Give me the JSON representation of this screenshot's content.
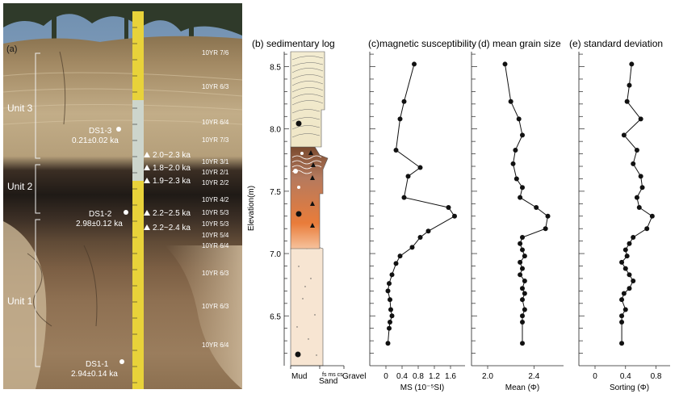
{
  "photo": {
    "panel_label": "(a)",
    "units": [
      "Unit 3",
      "Unit 2",
      "Unit 1"
    ],
    "munsell": [
      "10YR 7/6",
      "10YR 6/3",
      "10YR 6/4",
      "10YR 7/3",
      "10YR 3/1",
      "10YR 2/1",
      "10YR 2/2",
      "10YR 4/2",
      "10YR 5/3",
      "10YR 5/3",
      "10YR 5/4",
      "10YR 6/4",
      "10YR 6/3",
      "10YR 6/3",
      "10YR 6/4"
    ],
    "samples": [
      {
        "id": "DS1-3",
        "age": "0.21±0.02 ka"
      },
      {
        "id": "DS1-2",
        "age": "2.98±0.12 ka"
      },
      {
        "id": "DS1-1",
        "age": "2.94±0.14 ka"
      }
    ],
    "c14": [
      "2.0~2.3 ka",
      "1.8~2.0 ka",
      "1.9~2.3 ka",
      "2.2~2.5 ka",
      "2.2~2.4 ka"
    ]
  },
  "panels": {
    "b": {
      "title": "(b) sedimentary log",
      "xlabels": [
        "Mud",
        "Sand",
        "Gravel"
      ],
      "subxlabel": "fs ms cs"
    },
    "c": {
      "title": "(c)magnetic susceptibility"
    },
    "d": {
      "title": "(d) mean grain size"
    },
    "e": {
      "title": "(e) standard deviation"
    }
  },
  "chart_data": [
    {
      "type": "line",
      "title": "(c)magnetic susceptibility",
      "xlabel": "MS (10⁻⁵SI)",
      "ylabel": "Elevation(m)",
      "xticks": [
        "0",
        "0.4",
        "0.8",
        "1.2",
        "1.6"
      ],
      "xlim": [
        0,
        1.8
      ],
      "ylim": [
        6.1,
        8.62
      ],
      "yticks": [
        "6.5",
        "7.0",
        "7.5",
        "8.0",
        "8.5"
      ],
      "x": [
        0.7,
        0.45,
        0.35,
        0.25,
        0.85,
        0.55,
        0.45,
        1.55,
        1.7,
        1.05,
        0.85,
        0.65,
        0.35,
        0.25,
        0.15,
        0.08,
        0.05,
        0.1,
        0.12,
        0.15,
        0.1,
        0.08,
        0.05
      ],
      "y": [
        8.52,
        8.22,
        8.08,
        7.83,
        7.69,
        7.62,
        7.45,
        7.37,
        7.3,
        7.18,
        7.13,
        7.05,
        6.98,
        6.92,
        6.83,
        6.76,
        6.7,
        6.63,
        6.55,
        6.5,
        6.45,
        6.4,
        6.28
      ]
    },
    {
      "type": "line",
      "title": "(d) mean grain size",
      "xlabel": "Mean (Φ)",
      "xticks": [
        "2.0",
        "2.4"
      ],
      "xlim": [
        2.0,
        2.6
      ],
      "ylim": [
        6.1,
        8.62
      ],
      "x": [
        2.15,
        2.2,
        2.27,
        2.3,
        2.24,
        2.22,
        2.25,
        2.3,
        2.28,
        2.42,
        2.52,
        2.5,
        2.3,
        2.28,
        2.3,
        2.32,
        2.28,
        2.3,
        2.28,
        2.32,
        2.3,
        2.32,
        2.3,
        2.32,
        2.3,
        2.3,
        2.3
      ],
      "y": [
        8.52,
        8.22,
        8.08,
        7.95,
        7.83,
        7.72,
        7.6,
        7.53,
        7.45,
        7.37,
        7.3,
        7.2,
        7.13,
        7.08,
        7.03,
        6.98,
        6.93,
        6.88,
        6.83,
        6.78,
        6.72,
        6.68,
        6.63,
        6.55,
        6.5,
        6.45,
        6.28
      ]
    },
    {
      "type": "line",
      "title": "(e) standard deviation",
      "xlabel": "Sorting (Φ)",
      "xticks": [
        "0",
        "0.4",
        "0.8"
      ],
      "xlim": [
        0,
        0.9
      ],
      "ylim": [
        6.1,
        8.62
      ],
      "x": [
        0.48,
        0.45,
        0.42,
        0.6,
        0.38,
        0.55,
        0.5,
        0.6,
        0.62,
        0.55,
        0.58,
        0.75,
        0.68,
        0.5,
        0.45,
        0.4,
        0.42,
        0.35,
        0.4,
        0.45,
        0.5,
        0.45,
        0.38,
        0.35,
        0.4,
        0.35,
        0.35,
        0.35
      ],
      "y": [
        8.52,
        8.35,
        8.22,
        8.08,
        7.95,
        7.83,
        7.72,
        7.62,
        7.53,
        7.45,
        7.37,
        7.3,
        7.2,
        7.13,
        7.08,
        7.03,
        6.98,
        6.93,
        6.88,
        6.83,
        6.78,
        6.72,
        6.68,
        6.63,
        6.55,
        6.5,
        6.45,
        6.28
      ]
    }
  ]
}
